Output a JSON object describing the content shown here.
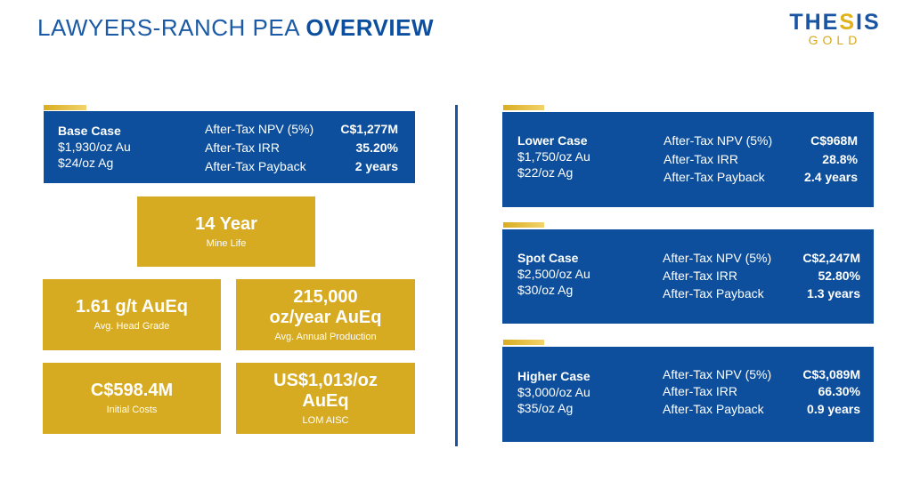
{
  "header": {
    "title_prefix": "LAWYERS-RANCH PEA ",
    "title_strong": "OVERVIEW",
    "logo_line1_a": "THE",
    "logo_line1_b": "S",
    "logo_line1_c": "IS",
    "logo_line2": "GOLD"
  },
  "base_case": {
    "name": "Base Case",
    "gold": "$1,930/oz Au",
    "silver": "$24/oz Ag",
    "rows": [
      {
        "label": "After-Tax NPV (5%)",
        "value": "C$1,277M"
      },
      {
        "label": "After-Tax IRR",
        "value": "35.20%"
      },
      {
        "label": "After-Tax Payback",
        "value": "2 years"
      }
    ]
  },
  "metrics": {
    "mine_life": {
      "value": "14 Year",
      "label": "Mine Life"
    },
    "head_grade": {
      "value": "1.61 g/t AuEq",
      "label": "Avg. Head Grade"
    },
    "production": {
      "value_line1": "215,000",
      "value_line2": "oz/year AuEq",
      "label": "Avg. Annual Production"
    },
    "initial_costs": {
      "value": "C$598.4M",
      "label": "Initial Costs"
    },
    "aisc": {
      "value_line1": "US$1,013/oz",
      "value_line2": "AuEq",
      "label": "LOM AISC"
    }
  },
  "cases": [
    {
      "name": "Lower Case",
      "gold": "$1,750/oz Au",
      "silver": "$22/oz Ag",
      "rows": [
        {
          "label": "After-Tax NPV (5%)",
          "value": "C$968M"
        },
        {
          "label": "After-Tax IRR",
          "value": "28.8%"
        },
        {
          "label": "After-Tax Payback",
          "value": "2.4 years"
        }
      ]
    },
    {
      "name": "Spot Case",
      "gold": "$2,500/oz Au",
      "silver": "$30/oz Ag",
      "rows": [
        {
          "label": "After-Tax NPV (5%)",
          "value": "C$2,247M"
        },
        {
          "label": "After-Tax IRR",
          "value": "52.80%"
        },
        {
          "label": "After-Tax Payback",
          "value": "1.3 years"
        }
      ]
    },
    {
      "name": "Higher Case",
      "gold": "$3,000/oz Au",
      "silver": "$35/oz Ag",
      "rows": [
        {
          "label": "After-Tax NPV (5%)",
          "value": "C$3,089M"
        },
        {
          "label": "After-Tax IRR",
          "value": "66.30%"
        },
        {
          "label": "After-Tax Payback",
          "value": "0.9 years"
        }
      ]
    }
  ],
  "colors": {
    "blue": "#0d4f9c",
    "gold": "#d6aa21",
    "title_blue": "#1a5aa6"
  }
}
